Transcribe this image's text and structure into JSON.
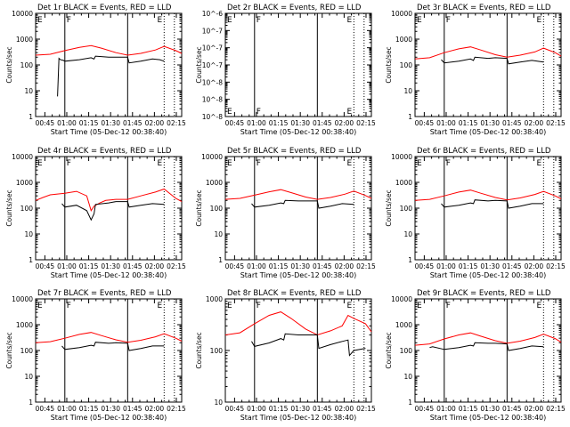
{
  "figure": {
    "xlabel": "Start Time (05-Dec-12 00:38:40)",
    "ylabel": "Counts/sec",
    "x_tick_labels": [
      "00:45",
      "01:00",
      "01:15",
      "01:30",
      "01:45",
      "02:00",
      "02:15"
    ]
  },
  "chart_data": [
    {
      "type": "line",
      "title": "Det 1r BLACK = Events, RED = LLD",
      "xlabel": "Start Time (05-Dec-12 00:38:40)",
      "ylabel": "Counts/sec",
      "x_unit": "minutes after 00:38:40",
      "xlim": [
        0,
        100
      ],
      "ylim": [
        1,
        10000
      ],
      "yscale": "log",
      "y_tick_labels": [
        "1",
        "10",
        "100",
        "1000",
        "10000"
      ],
      "flag_labels": [
        {
          "text": "E",
          "x": 0
        },
        {
          "text": "F",
          "x": 20
        },
        {
          "text": "E",
          "x": 82
        }
      ],
      "solid_vlines": [
        20,
        63
      ],
      "dotted_vlines": [
        88,
        95
      ],
      "series": [
        {
          "color": "#ff0000",
          "x": [
            0,
            10,
            20,
            30,
            38,
            45,
            55,
            63,
            72,
            82,
            88,
            96,
            100
          ],
          "y": [
            240,
            260,
            360,
            480,
            560,
            450,
            300,
            240,
            280,
            380,
            520,
            360,
            280
          ]
        },
        {
          "color": "#000000",
          "x": [
            15,
            16,
            17,
            19,
            20,
            30,
            38,
            40,
            41,
            50,
            55,
            63,
            64,
            72,
            80,
            85,
            88
          ],
          "y": [
            6,
            180,
            160,
            150,
            140,
            160,
            190,
            170,
            220,
            200,
            200,
            200,
            120,
            140,
            170,
            160,
            140
          ]
        }
      ]
    },
    {
      "type": "line",
      "title": "Det 2r BLACK = Events, RED = LLD",
      "xlabel": "Start Time (05-Dec-12 00:38:40)",
      "ylabel": "Counts/sec",
      "x_unit": "minutes after 00:38:40",
      "xlim": [
        0,
        100
      ],
      "ylim": [
        1e-08,
        1e-06
      ],
      "yscale": "log",
      "y_tick_labels": [
        "10^-8",
        "10^-8",
        "10^-8",
        "10^-7",
        "10^-7",
        "10^-7",
        "10^-6"
      ],
      "flag_labels": [
        {
          "text": "E",
          "x": 0
        },
        {
          "text": "F",
          "x": 20
        },
        {
          "text": "E",
          "x": 82
        }
      ],
      "solid_vlines": [
        20,
        63
      ],
      "dotted_vlines": [
        88,
        95
      ],
      "series": []
    },
    {
      "type": "line",
      "title": "Det 3r BLACK = Events, RED = LLD",
      "xlabel": "Start Time (05-Dec-12 00:38:40)",
      "ylabel": "Counts/sec",
      "x_unit": "minutes after 00:38:40",
      "xlim": [
        0,
        100
      ],
      "ylim": [
        1,
        10000
      ],
      "yscale": "log",
      "y_tick_labels": [
        "1",
        "10",
        "100",
        "1000",
        "10000"
      ],
      "flag_labels": [
        {
          "text": "E",
          "x": 0
        },
        {
          "text": "F",
          "x": 20
        },
        {
          "text": "E",
          "x": 82
        }
      ],
      "solid_vlines": [
        20,
        63
      ],
      "dotted_vlines": [
        88,
        95
      ],
      "series": [
        {
          "color": "#ff0000",
          "x": [
            0,
            10,
            20,
            30,
            38,
            45,
            55,
            63,
            72,
            82,
            88,
            96,
            100
          ],
          "y": [
            170,
            190,
            300,
            420,
            500,
            380,
            250,
            200,
            240,
            320,
            450,
            300,
            220
          ]
        },
        {
          "color": "#000000",
          "x": [
            18,
            20,
            30,
            38,
            40,
            41,
            50,
            55,
            63,
            64,
            72,
            80,
            88
          ],
          "y": [
            160,
            120,
            140,
            170,
            150,
            200,
            180,
            190,
            180,
            110,
            130,
            150,
            130
          ]
        }
      ]
    },
    {
      "type": "line",
      "title": "Det 4r BLACK = Events, RED = LLD",
      "xlabel": "Start Time (05-Dec-12 00:38:40)",
      "ylabel": "Counts/sec",
      "x_unit": "minutes after 00:38:40",
      "xlim": [
        0,
        100
      ],
      "ylim": [
        1,
        10000
      ],
      "yscale": "log",
      "y_tick_labels": [
        "1",
        "10",
        "100",
        "1000",
        "10000"
      ],
      "flag_labels": [
        {
          "text": "E",
          "x": 0
        },
        {
          "text": "F",
          "x": 20
        },
        {
          "text": "E",
          "x": 82
        }
      ],
      "solid_vlines": [
        20,
        63
      ],
      "dotted_vlines": [
        88,
        95
      ],
      "series": [
        {
          "color": "#ff0000",
          "x": [
            0,
            5,
            10,
            20,
            28,
            35,
            38,
            40,
            44,
            48,
            55,
            63,
            72,
            82,
            88,
            96,
            100
          ],
          "y": [
            200,
            260,
            330,
            380,
            450,
            300,
            80,
            120,
            160,
            200,
            220,
            220,
            300,
            420,
            550,
            240,
            180
          ]
        },
        {
          "color": "#000000",
          "x": [
            18,
            20,
            28,
            35,
            38,
            40,
            41,
            50,
            55,
            63,
            64,
            72,
            80,
            88
          ],
          "y": [
            150,
            110,
            130,
            80,
            35,
            60,
            140,
            160,
            180,
            180,
            110,
            130,
            150,
            140
          ]
        }
      ]
    },
    {
      "type": "line",
      "title": "Det 5r BLACK = Events, RED = LLD",
      "xlabel": "Start Time (05-Dec-12 00:38:40)",
      "ylabel": "Counts/sec",
      "x_unit": "minutes after 00:38:40",
      "xlim": [
        0,
        100
      ],
      "ylim": [
        1,
        10000
      ],
      "yscale": "log",
      "y_tick_labels": [
        "1",
        "10",
        "100",
        "1000",
        "10000"
      ],
      "flag_labels": [
        {
          "text": "E",
          "x": 0
        },
        {
          "text": "F",
          "x": 20
        },
        {
          "text": "E",
          "x": 82
        }
      ],
      "solid_vlines": [
        20,
        63
      ],
      "dotted_vlines": [
        88,
        95
      ],
      "series": [
        {
          "color": "#ff0000",
          "x": [
            0,
            10,
            20,
            30,
            38,
            45,
            55,
            63,
            72,
            82,
            88,
            96,
            100
          ],
          "y": [
            220,
            240,
            320,
            430,
            520,
            400,
            270,
            220,
            260,
            350,
            460,
            310,
            240
          ]
        },
        {
          "color": "#000000",
          "x": [
            18,
            20,
            30,
            38,
            40,
            41,
            50,
            55,
            63,
            64,
            72,
            80,
            88
          ],
          "y": [
            150,
            110,
            130,
            160,
            150,
            200,
            190,
            190,
            190,
            100,
            120,
            150,
            140
          ]
        }
      ]
    },
    {
      "type": "line",
      "title": "Det 6r BLACK = Events, RED = LLD",
      "xlabel": "Start Time (05-Dec-12 00:38:40)",
      "ylabel": "Counts/sec",
      "x_unit": "minutes after 00:38:40",
      "xlim": [
        0,
        100
      ],
      "ylim": [
        1,
        10000
      ],
      "yscale": "log",
      "y_tick_labels": [
        "1",
        "10",
        "100",
        "1000",
        "10000"
      ],
      "flag_labels": [
        {
          "text": "E",
          "x": 0
        },
        {
          "text": "F",
          "x": 20
        },
        {
          "text": "E",
          "x": 82
        }
      ],
      "solid_vlines": [
        20,
        63
      ],
      "dotted_vlines": [
        88,
        95
      ],
      "series": [
        {
          "color": "#ff0000",
          "x": [
            0,
            10,
            20,
            30,
            38,
            45,
            55,
            63,
            72,
            82,
            88,
            96,
            100
          ],
          "y": [
            200,
            220,
            300,
            420,
            500,
            380,
            260,
            210,
            250,
            340,
            450,
            300,
            230
          ]
        },
        {
          "color": "#000000",
          "x": [
            18,
            20,
            30,
            38,
            40,
            41,
            50,
            55,
            63,
            64,
            72,
            80,
            88
          ],
          "y": [
            150,
            110,
            130,
            160,
            150,
            210,
            190,
            200,
            190,
            100,
            120,
            150,
            150
          ]
        }
      ]
    },
    {
      "type": "line",
      "title": "Det 7r BLACK = Events, RED = LLD",
      "xlabel": "Start Time (05-Dec-12 00:38:40)",
      "ylabel": "Counts/sec",
      "x_unit": "minutes after 00:38:40",
      "xlim": [
        0,
        100
      ],
      "ylim": [
        1,
        10000
      ],
      "yscale": "log",
      "y_tick_labels": [
        "1",
        "10",
        "100",
        "1000",
        "10000"
      ],
      "flag_labels": [
        {
          "text": "E",
          "x": 0
        },
        {
          "text": "F",
          "x": 20
        },
        {
          "text": "E",
          "x": 82
        }
      ],
      "solid_vlines": [
        20,
        63
      ],
      "dotted_vlines": [
        88,
        95
      ],
      "series": [
        {
          "color": "#ff0000",
          "x": [
            0,
            10,
            20,
            30,
            38,
            45,
            55,
            63,
            72,
            82,
            88,
            96,
            100
          ],
          "y": [
            200,
            220,
            300,
            420,
            500,
            380,
            260,
            210,
            250,
            340,
            450,
            300,
            230
          ]
        },
        {
          "color": "#000000",
          "x": [
            18,
            20,
            30,
            38,
            40,
            41,
            50,
            55,
            63,
            64,
            72,
            80,
            88
          ],
          "y": [
            150,
            110,
            130,
            160,
            150,
            210,
            190,
            200,
            190,
            100,
            120,
            150,
            150
          ]
        }
      ]
    },
    {
      "type": "line",
      "title": "Det 8r BLACK = Events, RED = LLD",
      "xlabel": "Start Time (05-Dec-12 00:38:40)",
      "ylabel": "Counts/sec",
      "x_unit": "minutes after 00:38:40",
      "xlim": [
        0,
        100
      ],
      "ylim": [
        10,
        1000
      ],
      "yscale": "log",
      "y_tick_labels": [
        "10",
        "100",
        "1000"
      ],
      "flag_labels": [
        {
          "text": "E",
          "x": 0
        },
        {
          "text": "F",
          "x": 20
        },
        {
          "text": "E",
          "x": 82
        }
      ],
      "solid_vlines": [
        20,
        63
      ],
      "dotted_vlines": [
        88,
        95
      ],
      "series": [
        {
          "color": "#ff0000",
          "x": [
            0,
            10,
            20,
            30,
            38,
            45,
            55,
            63,
            72,
            80,
            84,
            88,
            96,
            100
          ],
          "y": [
            200,
            220,
            330,
            480,
            560,
            420,
            260,
            200,
            240,
            300,
            480,
            420,
            330,
            230
          ]
        },
        {
          "color": "#000000",
          "x": [
            18,
            20,
            30,
            38,
            40,
            41,
            50,
            55,
            63,
            64,
            72,
            80,
            84,
            85,
            88,
            96
          ],
          "y": [
            150,
            120,
            140,
            170,
            160,
            210,
            200,
            200,
            200,
            110,
            130,
            150,
            160,
            80,
            100,
            110
          ]
        }
      ]
    },
    {
      "type": "line",
      "title": "Det 9r BLACK = Events, RED = LLD",
      "xlabel": "Start Time (05-Dec-12 00:38:40)",
      "ylabel": "Counts/sec",
      "x_unit": "minutes after 00:38:40",
      "xlim": [
        0,
        100
      ],
      "ylim": [
        1,
        10000
      ],
      "yscale": "log",
      "y_tick_labels": [
        "1",
        "10",
        "100",
        "1000",
        "10000"
      ],
      "flag_labels": [
        {
          "text": "E",
          "x": 0
        },
        {
          "text": "F",
          "x": 20
        },
        {
          "text": "E",
          "x": 82
        }
      ],
      "solid_vlines": [
        20,
        63
      ],
      "dotted_vlines": [
        88,
        95
      ],
      "series": [
        {
          "color": "#ff0000",
          "x": [
            0,
            10,
            20,
            30,
            38,
            45,
            55,
            63,
            72,
            82,
            88,
            96,
            100
          ],
          "y": [
            160,
            180,
            280,
            400,
            480,
            360,
            240,
            190,
            230,
            320,
            430,
            290,
            210
          ]
        },
        {
          "color": "#000000",
          "x": [
            10,
            12,
            20,
            30,
            38,
            40,
            41,
            50,
            55,
            63,
            64,
            72,
            80,
            88
          ],
          "y": [
            130,
            140,
            110,
            130,
            160,
            150,
            200,
            190,
            190,
            180,
            100,
            120,
            150,
            140
          ]
        }
      ]
    }
  ]
}
